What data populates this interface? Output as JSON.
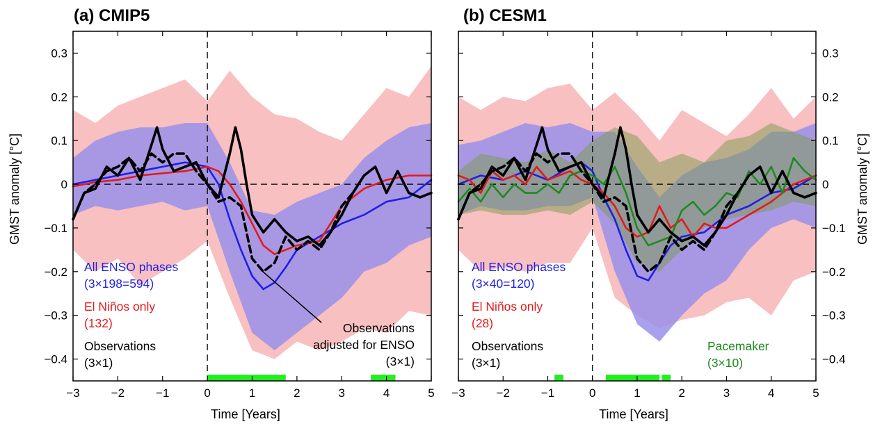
{
  "chart_data": [
    {
      "type": "line",
      "title": "(a) CMIP5",
      "xlabel": "Time [Years]",
      "ylabel": "GMST anomaly  [°C]",
      "xlim": [
        -3,
        5
      ],
      "ylim": [
        -0.45,
        0.35
      ],
      "xticks": [
        "−3",
        "−2",
        "−1",
        "0",
        "1",
        "2",
        "3",
        "4",
        "5"
      ],
      "yticks": [
        "0.3",
        "0.2",
        "0.1",
        "0",
        "−0.1",
        "−0.2",
        "−0.3",
        "−0.4"
      ],
      "vline_x": 0,
      "hline_y": 0,
      "bands": [
        {
          "color": "#f7b5b5",
          "x": [
            -3,
            -2.5,
            -2,
            -1.5,
            -1,
            -0.5,
            0,
            0.5,
            1,
            1.5,
            2,
            2.5,
            3,
            3.5,
            4,
            4.5,
            5
          ],
          "upper": [
            0.17,
            0.14,
            0.18,
            0.2,
            0.22,
            0.24,
            0.19,
            0.26,
            0.2,
            0.16,
            0.15,
            0.12,
            0.1,
            0.16,
            0.22,
            0.2,
            0.27
          ],
          "lower": [
            -0.15,
            -0.2,
            -0.17,
            -0.23,
            -0.2,
            -0.17,
            -0.13,
            -0.26,
            -0.38,
            -0.4,
            -0.36,
            -0.38,
            -0.36,
            -0.33,
            -0.34,
            -0.29,
            -0.3
          ]
        },
        {
          "color": "#9a90ea",
          "x": [
            -3,
            -2.5,
            -2,
            -1.5,
            -1,
            -0.5,
            0,
            0.5,
            1,
            1.5,
            2,
            2.5,
            3,
            3.5,
            4,
            4.5,
            5
          ],
          "upper": [
            0.06,
            0.1,
            0.12,
            0.13,
            0.13,
            0.14,
            0.14,
            0.05,
            -0.06,
            -0.07,
            -0.04,
            -0.02,
            0.0,
            0.06,
            0.1,
            0.13,
            0.14
          ],
          "lower": [
            -0.07,
            -0.05,
            -0.06,
            -0.05,
            -0.04,
            -0.06,
            -0.05,
            -0.2,
            -0.34,
            -0.38,
            -0.34,
            -0.3,
            -0.26,
            -0.2,
            -0.18,
            -0.14,
            -0.12
          ]
        }
      ],
      "series": [
        {
          "color": "#1f1fe6",
          "x": [
            -3,
            -2.5,
            -2,
            -1.5,
            -1,
            -0.5,
            0,
            0.25,
            0.5,
            0.75,
            1,
            1.25,
            1.5,
            1.75,
            2,
            2.5,
            3,
            3.5,
            4,
            4.5,
            5
          ],
          "y": [
            0.0,
            0.01,
            0.02,
            0.03,
            0.04,
            0.05,
            0.04,
            0.0,
            -0.08,
            -0.15,
            -0.21,
            -0.24,
            -0.225,
            -0.19,
            -0.15,
            -0.12,
            -0.09,
            -0.07,
            -0.04,
            -0.03,
            0.01
          ]
        },
        {
          "color": "#e41a1a",
          "x": [
            -3,
            -2.5,
            -2,
            -1.5,
            -1,
            -0.5,
            -0.25,
            0,
            0.25,
            0.5,
            0.75,
            1,
            1.25,
            1.5,
            1.75,
            2,
            2.5,
            3,
            3.5,
            4,
            4.5,
            5
          ],
          "y": [
            -0.005,
            0.005,
            0.01,
            0.02,
            0.025,
            0.03,
            0.035,
            0.04,
            0.03,
            0.0,
            -0.04,
            -0.09,
            -0.14,
            -0.16,
            -0.15,
            -0.14,
            -0.13,
            -0.05,
            -0.01,
            0.01,
            0.02,
            0.02
          ]
        },
        {
          "color": "#000000",
          "x": [
            -3,
            -2.75,
            -2.5,
            -2.25,
            -2,
            -1.75,
            -1.5,
            -1.25,
            -1.125,
            -1,
            -0.75,
            -0.5,
            -0.25,
            0,
            0.25,
            0.5,
            0.625,
            0.75,
            0.875,
            1,
            1.25,
            1.5,
            1.75,
            2,
            2.25,
            2.5,
            2.75,
            3,
            3.25,
            3.5,
            3.75,
            4,
            4.25,
            4.5,
            4.75,
            5
          ],
          "y": [
            -0.08,
            -0.02,
            -0.01,
            0.04,
            0.02,
            0.06,
            0.01,
            0.09,
            0.13,
            0.08,
            0.03,
            0.04,
            0.05,
            0.0,
            -0.03,
            0.07,
            0.13,
            0.08,
            0.0,
            -0.07,
            -0.11,
            -0.08,
            -0.11,
            -0.13,
            -0.12,
            -0.14,
            -0.11,
            -0.07,
            -0.02,
            0.02,
            0.04,
            -0.02,
            0.03,
            -0.02,
            -0.03,
            -0.02
          ]
        },
        {
          "color": "#000000",
          "dash": "10,6",
          "x": [
            -3,
            -2.75,
            -2.5,
            -2.25,
            -2,
            -1.75,
            -1.5,
            -1.25,
            -1,
            -0.75,
            -0.5,
            -0.25,
            0,
            0.25,
            0.5,
            0.75,
            1,
            1.25,
            1.5,
            1.75,
            2,
            2.25,
            2.5,
            2.75,
            3,
            3.25
          ],
          "y": [
            -0.08,
            -0.02,
            0.0,
            0.03,
            0.04,
            0.06,
            0.03,
            0.07,
            0.05,
            0.07,
            0.07,
            0.03,
            0.0,
            -0.04,
            -0.03,
            -0.05,
            -0.17,
            -0.2,
            -0.18,
            -0.12,
            -0.15,
            -0.13,
            -0.15,
            -0.11,
            -0.05,
            -0.02
          ]
        }
      ],
      "green_bars": [
        [
          0.0,
          1.75
        ],
        [
          3.65,
          4.2
        ]
      ],
      "annotations": [
        {
          "text": "All ENSO phases",
          "color": "#1f1fe6"
        },
        {
          "text": "(3×198=594)",
          "color": "#1f1fe6"
        },
        {
          "text": "El Niños only",
          "color": "#e41a1a"
        },
        {
          "text": "(132)",
          "color": "#e41a1a"
        },
        {
          "text": "Observations",
          "color": "#000000"
        },
        {
          "text": "(3×1)",
          "color": "#000000"
        },
        {
          "text": "Observations",
          "color": "#000000"
        },
        {
          "text": "adjusted for ENSO",
          "color": "#000000"
        },
        {
          "text": "(3×1)",
          "color": "#000000"
        }
      ]
    },
    {
      "type": "line",
      "title": "(b) CESM1",
      "xlabel": "Time [Years]",
      "ylabel": "GMST anomaly  [°C]",
      "xlim": [
        -3,
        5
      ],
      "ylim": [
        -0.45,
        0.35
      ],
      "xticks": [
        "−3",
        "−2",
        "−1",
        "0",
        "1",
        "2",
        "3",
        "4",
        "5"
      ],
      "yticks": [
        "0.3",
        "0.2",
        "0.1",
        "0",
        "−0.1",
        "−0.2",
        "−0.3",
        "−0.4"
      ],
      "vline_x": 0,
      "hline_y": 0,
      "bands": [
        {
          "color": "#f7b5b5",
          "x": [
            -3,
            -2.5,
            -2,
            -1.5,
            -1,
            -0.5,
            0,
            0.5,
            1,
            1.5,
            2,
            2.5,
            3,
            3.5,
            4,
            4.5,
            5
          ],
          "upper": [
            0.2,
            0.17,
            0.2,
            0.19,
            0.22,
            0.23,
            0.17,
            0.21,
            0.16,
            0.1,
            0.17,
            0.14,
            0.11,
            0.16,
            0.22,
            0.15,
            0.2
          ],
          "lower": [
            -0.15,
            -0.2,
            -0.19,
            -0.2,
            -0.18,
            -0.18,
            -0.1,
            -0.26,
            -0.3,
            -0.33,
            -0.31,
            -0.3,
            -0.27,
            -0.26,
            -0.3,
            -0.22,
            -0.2
          ]
        },
        {
          "color": "#9a90ea",
          "x": [
            -3,
            -2.5,
            -2,
            -1.5,
            -1,
            -0.5,
            0,
            0.5,
            1,
            1.5,
            2,
            2.5,
            3,
            3.5,
            4,
            4.5,
            5
          ],
          "upper": [
            0.09,
            0.1,
            0.12,
            0.14,
            0.13,
            0.14,
            0.12,
            0.12,
            0.04,
            -0.03,
            0.02,
            0.05,
            0.06,
            0.08,
            0.12,
            0.12,
            0.14
          ],
          "lower": [
            -0.07,
            -0.05,
            -0.06,
            -0.06,
            -0.05,
            -0.05,
            -0.03,
            -0.2,
            -0.32,
            -0.36,
            -0.3,
            -0.25,
            -0.22,
            -0.15,
            -0.1,
            -0.08,
            -0.1
          ]
        },
        {
          "color": "#7a9a4e",
          "opacity": 0.5,
          "x": [
            -3,
            -2.5,
            -2,
            -1.5,
            -1,
            -0.5,
            0,
            0.5,
            1,
            1.5,
            2,
            2.5,
            3,
            3.5,
            4,
            4.5,
            5
          ],
          "upper": [
            0.03,
            0.07,
            0.06,
            0.05,
            0.08,
            0.05,
            0.1,
            0.13,
            0.11,
            0.05,
            0.07,
            0.05,
            0.1,
            0.11,
            0.14,
            0.12,
            0.1
          ],
          "lower": [
            -0.07,
            -0.06,
            -0.07,
            -0.07,
            -0.06,
            -0.07,
            -0.04,
            -0.09,
            -0.18,
            -0.2,
            -0.15,
            -0.1,
            -0.08,
            -0.07,
            -0.06,
            -0.04,
            -0.05
          ]
        }
      ],
      "series": [
        {
          "color": "#1f1fe6",
          "x": [
            -3,
            -2.5,
            -2,
            -1.5,
            -1,
            -0.5,
            -0.25,
            0,
            0.25,
            0.5,
            0.75,
            1,
            1.25,
            1.5,
            1.75,
            2,
            2.5,
            3,
            3.5,
            4,
            4.5,
            5
          ],
          "y": [
            0.0,
            0.02,
            0.01,
            0.03,
            0.01,
            0.04,
            0.05,
            0.03,
            -0.03,
            -0.08,
            -0.15,
            -0.21,
            -0.22,
            -0.18,
            -0.14,
            -0.12,
            -0.11,
            -0.07,
            -0.05,
            -0.02,
            -0.01,
            0.02
          ]
        },
        {
          "color": "#e41a1a",
          "x": [
            -3,
            -2.75,
            -2.5,
            -2.25,
            -2,
            -1.75,
            -1.5,
            -1.25,
            -1,
            -0.75,
            -0.5,
            -0.25,
            0,
            0.25,
            0.5,
            0.75,
            1,
            1.25,
            1.5,
            1.75,
            2,
            2.25,
            2.5,
            2.75,
            3,
            3.5,
            4,
            4.5,
            5
          ],
          "y": [
            0.02,
            0.01,
            -0.02,
            0.03,
            0.01,
            0.02,
            0.0,
            0.04,
            0.01,
            0.02,
            0.03,
            0.01,
            0.0,
            -0.02,
            -0.05,
            -0.1,
            -0.12,
            -0.11,
            -0.05,
            -0.1,
            -0.08,
            -0.12,
            -0.09,
            -0.1,
            -0.1,
            -0.07,
            -0.04,
            0.0,
            0.02
          ]
        },
        {
          "color": "#1e8a1e",
          "x": [
            -3,
            -2.75,
            -2.5,
            -2.25,
            -2,
            -1.75,
            -1.5,
            -1.25,
            -1,
            -0.75,
            -0.5,
            -0.25,
            0,
            0.25,
            0.5,
            0.75,
            1,
            1.25,
            1.5,
            1.75,
            2,
            2.25,
            2.5,
            2.75,
            3,
            3.25,
            3.5,
            3.75,
            4,
            4.25,
            4.5,
            4.75,
            5
          ],
          "y": [
            -0.04,
            -0.01,
            -0.04,
            0.0,
            -0.03,
            0.0,
            -0.02,
            -0.02,
            0.0,
            -0.02,
            0.02,
            0.03,
            0.02,
            0.0,
            0.04,
            -0.02,
            -0.1,
            -0.14,
            -0.13,
            -0.12,
            -0.06,
            -0.04,
            -0.07,
            -0.05,
            -0.02,
            -0.03,
            0.03,
            0.0,
            0.04,
            -0.02,
            0.06,
            0.03,
            0.01
          ]
        },
        {
          "color": "#000000",
          "x": [
            -3,
            -2.75,
            -2.5,
            -2.25,
            -2,
            -1.75,
            -1.5,
            -1.25,
            -1.125,
            -1,
            -0.75,
            -0.5,
            -0.25,
            0,
            0.25,
            0.5,
            0.625,
            0.75,
            0.875,
            1,
            1.25,
            1.5,
            1.75,
            2,
            2.25,
            2.5,
            2.75,
            3,
            3.25,
            3.5,
            3.75,
            4,
            4.25,
            4.5,
            4.75,
            5
          ],
          "y": [
            -0.08,
            -0.02,
            -0.01,
            0.04,
            0.02,
            0.06,
            0.01,
            0.09,
            0.13,
            0.08,
            0.03,
            0.04,
            0.05,
            0.0,
            -0.03,
            0.07,
            0.13,
            0.08,
            0.0,
            -0.07,
            -0.11,
            -0.08,
            -0.11,
            -0.13,
            -0.12,
            -0.14,
            -0.11,
            -0.07,
            -0.02,
            0.02,
            0.04,
            -0.02,
            0.03,
            -0.02,
            -0.03,
            -0.02
          ]
        },
        {
          "color": "#000000",
          "dash": "10,6",
          "x": [
            -3,
            -2.75,
            -2.5,
            -2.25,
            -2,
            -1.75,
            -1.5,
            -1.25,
            -1,
            -0.75,
            -0.5,
            -0.25,
            0,
            0.25,
            0.5,
            0.75,
            1,
            1.25,
            1.5,
            1.75,
            2,
            2.25,
            2.5,
            2.75,
            3,
            3.25
          ],
          "y": [
            -0.08,
            -0.02,
            0.0,
            0.03,
            0.04,
            0.06,
            0.03,
            0.07,
            0.05,
            0.07,
            0.07,
            0.03,
            0.0,
            -0.04,
            -0.03,
            -0.05,
            -0.17,
            -0.2,
            -0.18,
            -0.12,
            -0.15,
            -0.13,
            -0.15,
            -0.11,
            -0.05,
            -0.02
          ]
        }
      ],
      "green_bars": [
        [
          -0.85,
          -0.65
        ],
        [
          0.3,
          1.5
        ],
        [
          1.55,
          1.75
        ]
      ],
      "annotations": [
        {
          "text": "All ENSO phases",
          "color": "#1f1fe6"
        },
        {
          "text": "(3×40=120)",
          "color": "#1f1fe6"
        },
        {
          "text": "El Niños only",
          "color": "#e41a1a"
        },
        {
          "text": "(28)",
          "color": "#e41a1a"
        },
        {
          "text": "Observations",
          "color": "#000000"
        },
        {
          "text": "(3×1)",
          "color": "#000000"
        },
        {
          "text": "Pacemaker",
          "color": "#1e8a1e"
        },
        {
          "text": "(3×10)",
          "color": "#1e8a1e"
        }
      ]
    }
  ]
}
